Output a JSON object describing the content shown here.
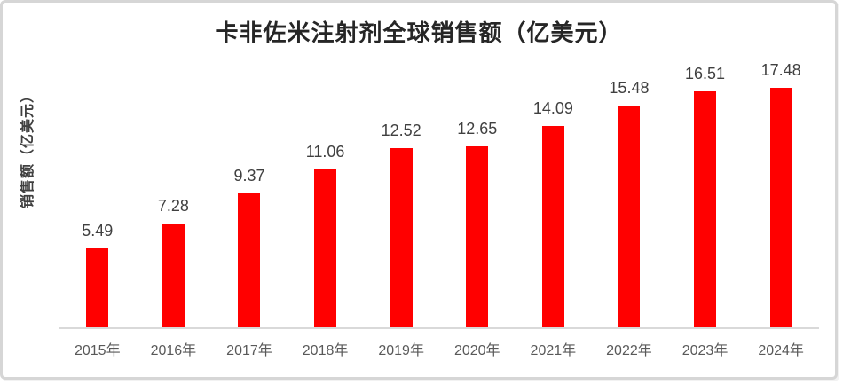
{
  "chart_data": {
    "type": "bar",
    "title": "卡非佐米注射剂全球销售额（亿美元）",
    "ylabel": "销售额（亿美元）",
    "xlabel": "",
    "categories": [
      "2015年",
      "2016年",
      "2017年",
      "2018年",
      "2019年",
      "2020年",
      "2021年",
      "2022年",
      "2023年",
      "2024年"
    ],
    "values": [
      5.49,
      7.28,
      9.37,
      11.06,
      12.52,
      12.65,
      14.09,
      15.48,
      16.51,
      17.48
    ],
    "value_labels": [
      "5.49",
      "7.28",
      "9.37",
      "11.06",
      "12.52",
      "12.65",
      "14.09",
      "15.48",
      "16.51",
      "17.48"
    ],
    "ylim": [
      0,
      18.6
    ],
    "grid": false,
    "legend": "none",
    "bar_color": "#FF0000",
    "title_color": "#262626",
    "value_label_color": "#404040",
    "axis_label_color": "#595959",
    "axis_line_color": "#D9D9D9"
  }
}
